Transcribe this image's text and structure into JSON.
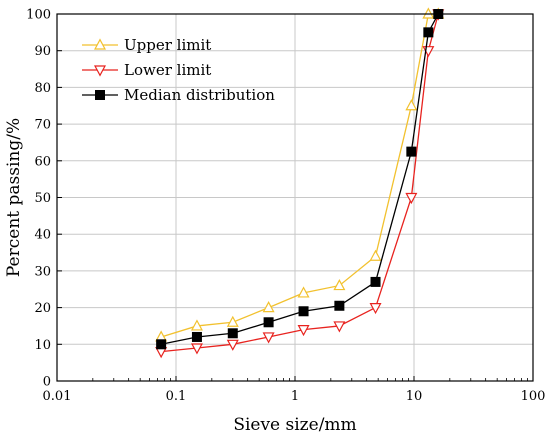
{
  "chart_data": {
    "type": "line",
    "xlabel": "Sieve size/mm",
    "ylabel": "Percent passing/%",
    "x_scale": "log",
    "xlim": [
      0.01,
      100
    ],
    "ylim": [
      0,
      100
    ],
    "x_ticks": [
      0.01,
      0.1,
      1,
      10,
      100
    ],
    "x_tick_labels": [
      "0.01",
      "0.1",
      "1",
      "10",
      "100"
    ],
    "y_ticks": [
      0,
      10,
      20,
      30,
      40,
      50,
      60,
      70,
      80,
      90,
      100
    ],
    "y_tick_labels": [
      "0",
      "10",
      "20",
      "30",
      "40",
      "50",
      "60",
      "70",
      "80",
      "90",
      "100"
    ],
    "grid": true,
    "legend_position": "top-left",
    "x": [
      0.075,
      0.15,
      0.3,
      0.6,
      1.18,
      2.36,
      4.75,
      9.5,
      13.2,
      16
    ],
    "series": [
      {
        "name": "Upper limit",
        "values": [
          12,
          15,
          16,
          20,
          24,
          26,
          34,
          75,
          100,
          100
        ],
        "color": "#f2c12e",
        "marker": "triangle-up-open"
      },
      {
        "name": "Lower limit",
        "values": [
          8,
          9,
          10,
          12,
          14,
          15,
          20,
          50,
          90,
          100
        ],
        "color": "#e8231f",
        "marker": "triangle-down-open"
      },
      {
        "name": "Median distribution",
        "values": [
          10,
          12,
          13,
          16,
          19,
          20.5,
          27,
          62.5,
          95,
          100
        ],
        "color": "#000000",
        "marker": "square-filled"
      }
    ]
  }
}
